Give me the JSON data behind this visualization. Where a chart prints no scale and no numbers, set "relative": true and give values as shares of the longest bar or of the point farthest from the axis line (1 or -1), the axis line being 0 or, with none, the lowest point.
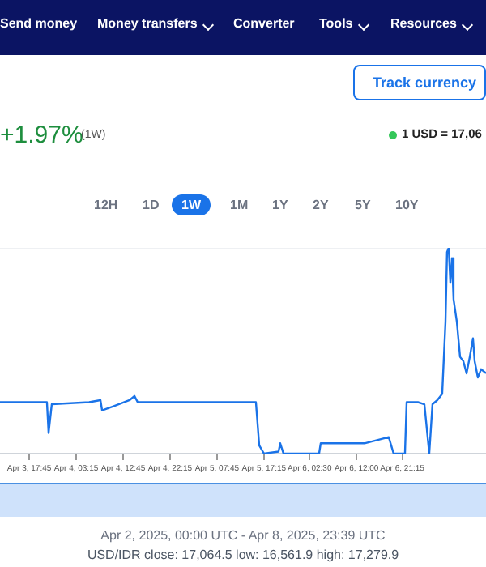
{
  "chart_data": {
    "type": "line",
    "relative": true,
    "marker": "none",
    "xlim": [
      "2025-04-03T11:50",
      "2025-04-07T14:12"
    ],
    "xticks": [
      {
        "value": "2025-04-03T17:45",
        "label": "Apr 3, 17:45"
      },
      {
        "value": "2025-04-04T03:15",
        "label": "Apr 4, 03:15"
      },
      {
        "value": "2025-04-04T12:45",
        "label": "Apr 4, 12:45"
      },
      {
        "value": "2025-04-04T22:15",
        "label": "Apr 4, 22:15"
      },
      {
        "value": "2025-04-05T07:45",
        "label": "Apr 5, 07:45"
      },
      {
        "value": "2025-04-05T17:15",
        "label": "Apr 5, 17:15"
      },
      {
        "value": "2025-04-06T02:30",
        "label": "Apr 6, 02:30"
      },
      {
        "value": "2025-04-06T12:00",
        "label": "Apr 6, 12:00"
      },
      {
        "value": "2025-04-06T21:15",
        "label": "Apr 6, 21:15"
      }
    ],
    "x": [
      "2025-04-03T11:50",
      "2025-04-03T15:07",
      "2025-04-03T21:20",
      "2025-04-03T21:40",
      "2025-04-03T22:19",
      "2025-04-04T05:52",
      "2025-04-04T08:10",
      "2025-04-04T08:30",
      "2025-04-04T10:47",
      "2025-04-04T14:04",
      "2025-04-04T15:03",
      "2025-04-04T15:42",
      "2025-04-04T20:37",
      "2025-04-05T03:10",
      "2025-04-05T09:44",
      "2025-04-05T14:39",
      "2025-04-05T15:38",
      "2025-04-05T16:18",
      "2025-04-05T17:16",
      "2025-04-05T20:13",
      "2025-04-05T20:33",
      "2025-04-05T21:13",
      "2025-04-06T04:25",
      "2025-04-06T04:45",
      "2025-04-06T13:36",
      "2025-04-06T18:31",
      "2025-04-06T19:30",
      "2025-04-06T21:48",
      "2025-04-06T22:08",
      "2025-04-07T00:25",
      "2025-04-07T01:44",
      "2025-04-07T02:43",
      "2025-04-07T03:22",
      "2025-04-07T04:21",
      "2025-04-07T05:20",
      "2025-04-07T06:00",
      "2025-04-07T06:19",
      "2025-04-07T06:39",
      "2025-04-07T06:59",
      "2025-04-07T07:19",
      "2025-04-07T07:38",
      "2025-04-07T08:18",
      "2025-04-07T08:57",
      "2025-04-07T09:36",
      "2025-04-07T10:16",
      "2025-04-07T10:55",
      "2025-04-07T11:34",
      "2025-04-07T11:54",
      "2025-04-07T12:33",
      "2025-04-07T13:13",
      "2025-04-07T14:12"
    ],
    "series": [
      {
        "color": "#1a73e8",
        "values": [
          0.25,
          0.25,
          0.25,
          0.1,
          0.24,
          0.25,
          0.26,
          0.21,
          0.23,
          0.26,
          0.28,
          0.25,
          0.25,
          0.25,
          0.25,
          0.25,
          0.25,
          0.04,
          0,
          0.01,
          0.05,
          0,
          0,
          0.05,
          0.05,
          0.08,
          0,
          0,
          0.25,
          0.25,
          0.24,
          0,
          0.24,
          0.26,
          0.29,
          0.64,
          0.98,
          1,
          0.83,
          0.95,
          0.75,
          0.64,
          0.47,
          0.45,
          0.39,
          0.47,
          0.56,
          0.45,
          0.37,
          0.41,
          0.39
        ]
      }
    ],
    "annotations": [
      "Send money",
      "Money transfers",
      "Converter",
      "Tools",
      "Resources",
      "Track currency",
      "+1.97%",
      "(1W)",
      "1 USD = 17,06",
      "12H",
      "1D",
      "1W",
      "1M",
      "1Y",
      "2Y",
      "5Y",
      "10Y",
      "Apr 2, 2025, 00:00 UTC - Apr 8, 2025, 23:39 UTC",
      "USD/IDR close: 17,064.5 low: 16,561.9 high: 17,279.9"
    ]
  }
}
